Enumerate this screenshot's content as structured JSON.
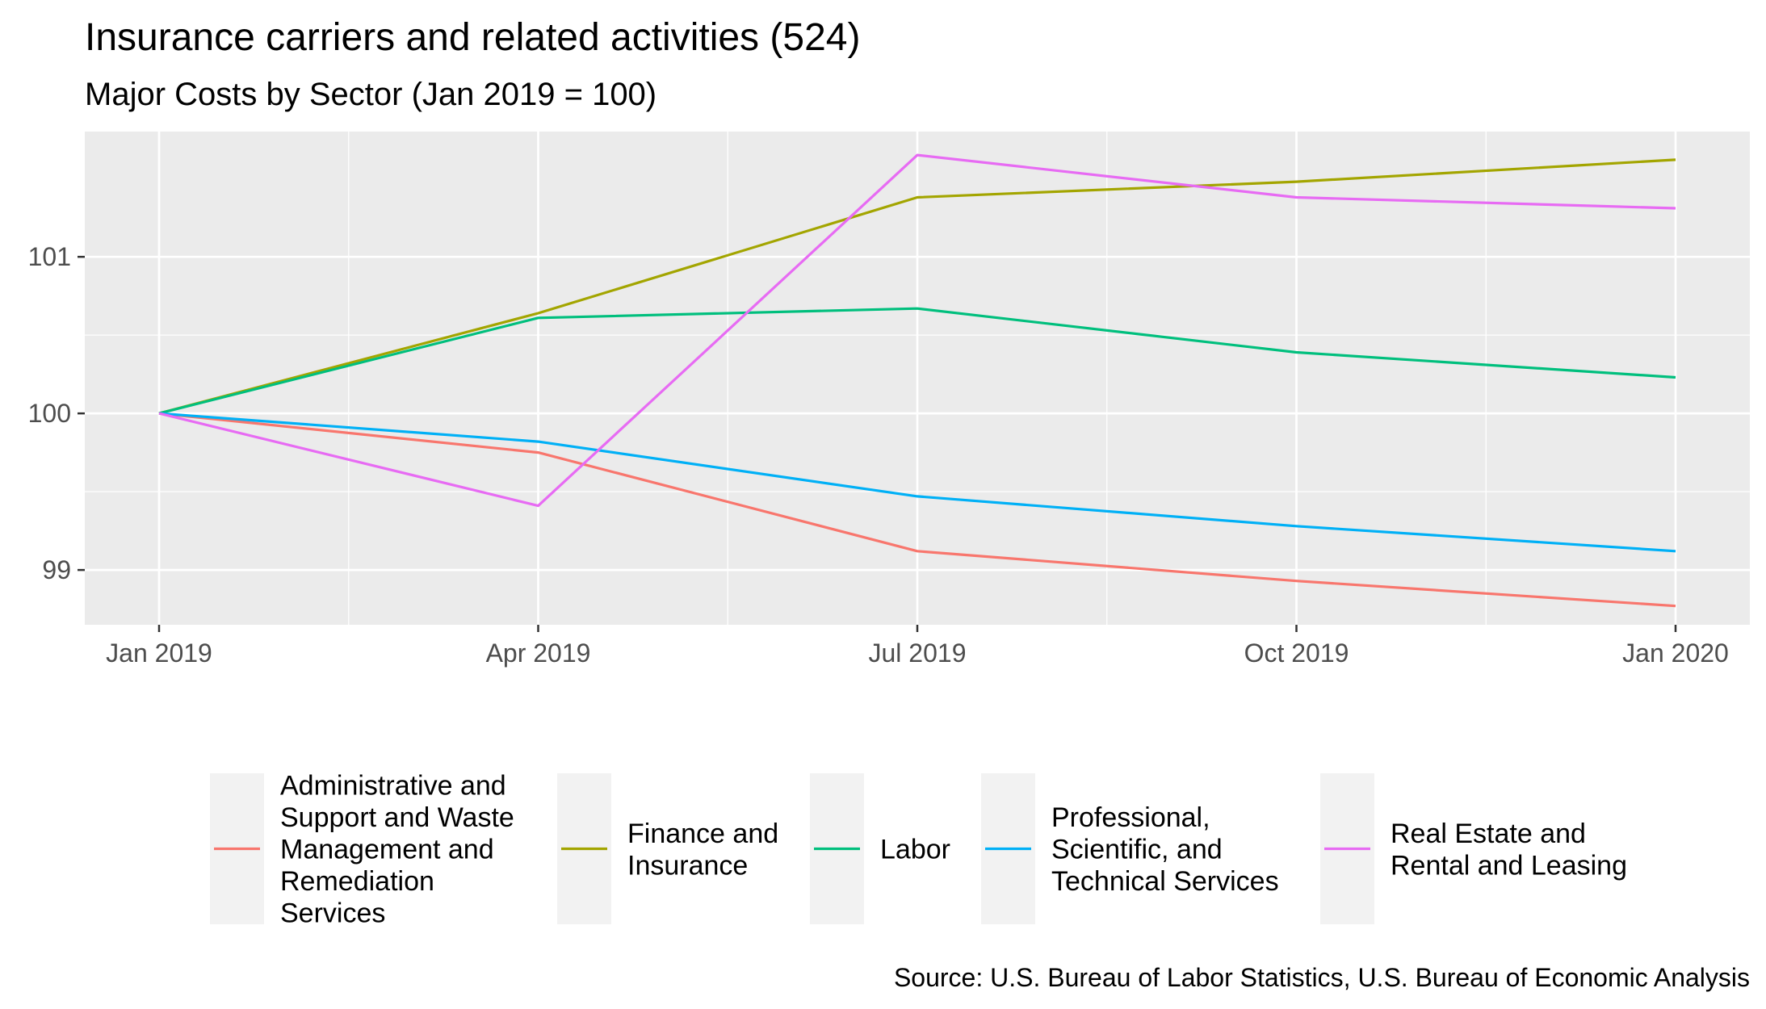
{
  "chart_data": {
    "type": "line",
    "title": "Insurance carriers and related activities (524)",
    "subtitle": "Major Costs by Sector (Jan 2019 = 100)",
    "caption": "Source: U.S. Bureau of Labor Statistics, U.S. Bureau of Economic Analysis",
    "xlabel": "",
    "ylabel": "",
    "x": [
      "Jan 2019",
      "Apr 2019",
      "Jul 2019",
      "Oct 2019",
      "Jan 2020"
    ],
    "x_ticks": [
      "Jan 2019",
      "Apr 2019",
      "Jul 2019",
      "Oct 2019",
      "Jan 2020"
    ],
    "y_ticks": [
      99,
      100,
      101
    ],
    "ylim": [
      98.65,
      101.8
    ],
    "grid": true,
    "legend_position": "bottom",
    "series": [
      {
        "name": "Administrative and Support and Waste Management and Remediation Services",
        "legend_lines": [
          "Administrative and",
          "Support and Waste",
          "Management and",
          "Remediation",
          "Services"
        ],
        "color": "#F8766D",
        "values": [
          100.0,
          99.75,
          99.12,
          98.93,
          98.77
        ]
      },
      {
        "name": "Finance and Insurance",
        "legend_lines": [
          "Finance and",
          "Insurance"
        ],
        "color": "#A3A500",
        "values": [
          100.0,
          100.64,
          101.38,
          101.48,
          101.62
        ]
      },
      {
        "name": "Labor",
        "legend_lines": [
          "Labor"
        ],
        "color": "#00BF7D",
        "values": [
          100.0,
          100.61,
          100.67,
          100.39,
          100.23
        ]
      },
      {
        "name": "Professional, Scientific, and Technical Services",
        "legend_lines": [
          "Professional,",
          "Scientific, and",
          "Technical Services"
        ],
        "color": "#00B0F6",
        "values": [
          100.0,
          99.82,
          99.47,
          99.28,
          99.12
        ]
      },
      {
        "name": "Real Estate and Rental and Leasing",
        "legend_lines": [
          "Real Estate and",
          "Rental and Leasing"
        ],
        "color": "#E76BF3",
        "values": [
          100.0,
          99.41,
          101.65,
          101.38,
          101.31
        ]
      }
    ]
  }
}
